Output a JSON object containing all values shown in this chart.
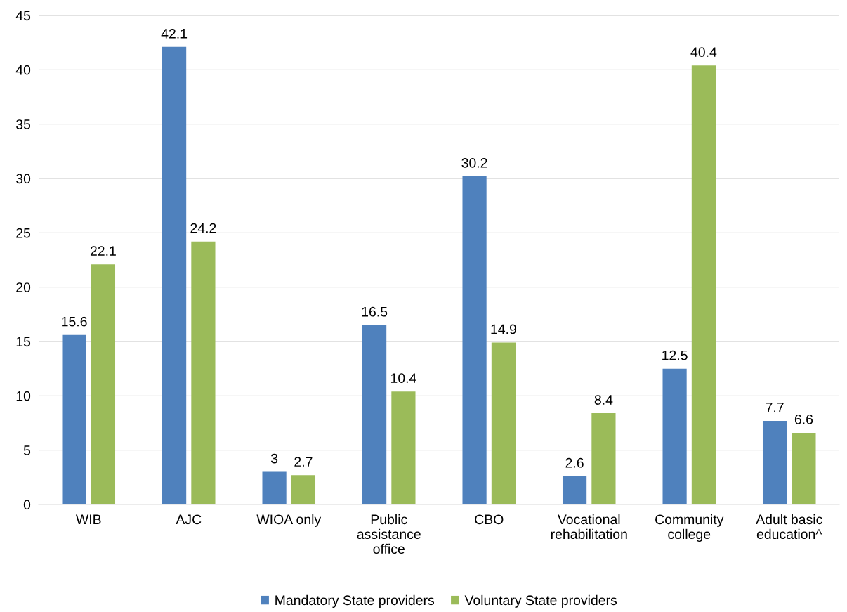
{
  "chart_data": {
    "type": "bar",
    "categories": [
      "WIB",
      "AJC",
      "WIOA only",
      "Public\nassistance\noffice",
      "CBO",
      "Vocational\nrehabilitation",
      "Community\ncollege",
      "Adult basic\neducation^"
    ],
    "series": [
      {
        "name": "Mandatory State providers",
        "color": "#4f81bd",
        "values": [
          15.6,
          42.1,
          3,
          16.5,
          30.2,
          2.6,
          12.5,
          7.7
        ]
      },
      {
        "name": "Voluntary State providers",
        "color": "#9bbb59",
        "values": [
          22.1,
          24.2,
          2.7,
          10.4,
          14.9,
          8.4,
          40.4,
          6.6
        ]
      }
    ],
    "ylim": [
      0,
      45
    ],
    "yticks": [
      0,
      5,
      10,
      15,
      20,
      25,
      30,
      35,
      40,
      45
    ],
    "grid": "y",
    "legend": "bottom",
    "data_labels": true
  }
}
